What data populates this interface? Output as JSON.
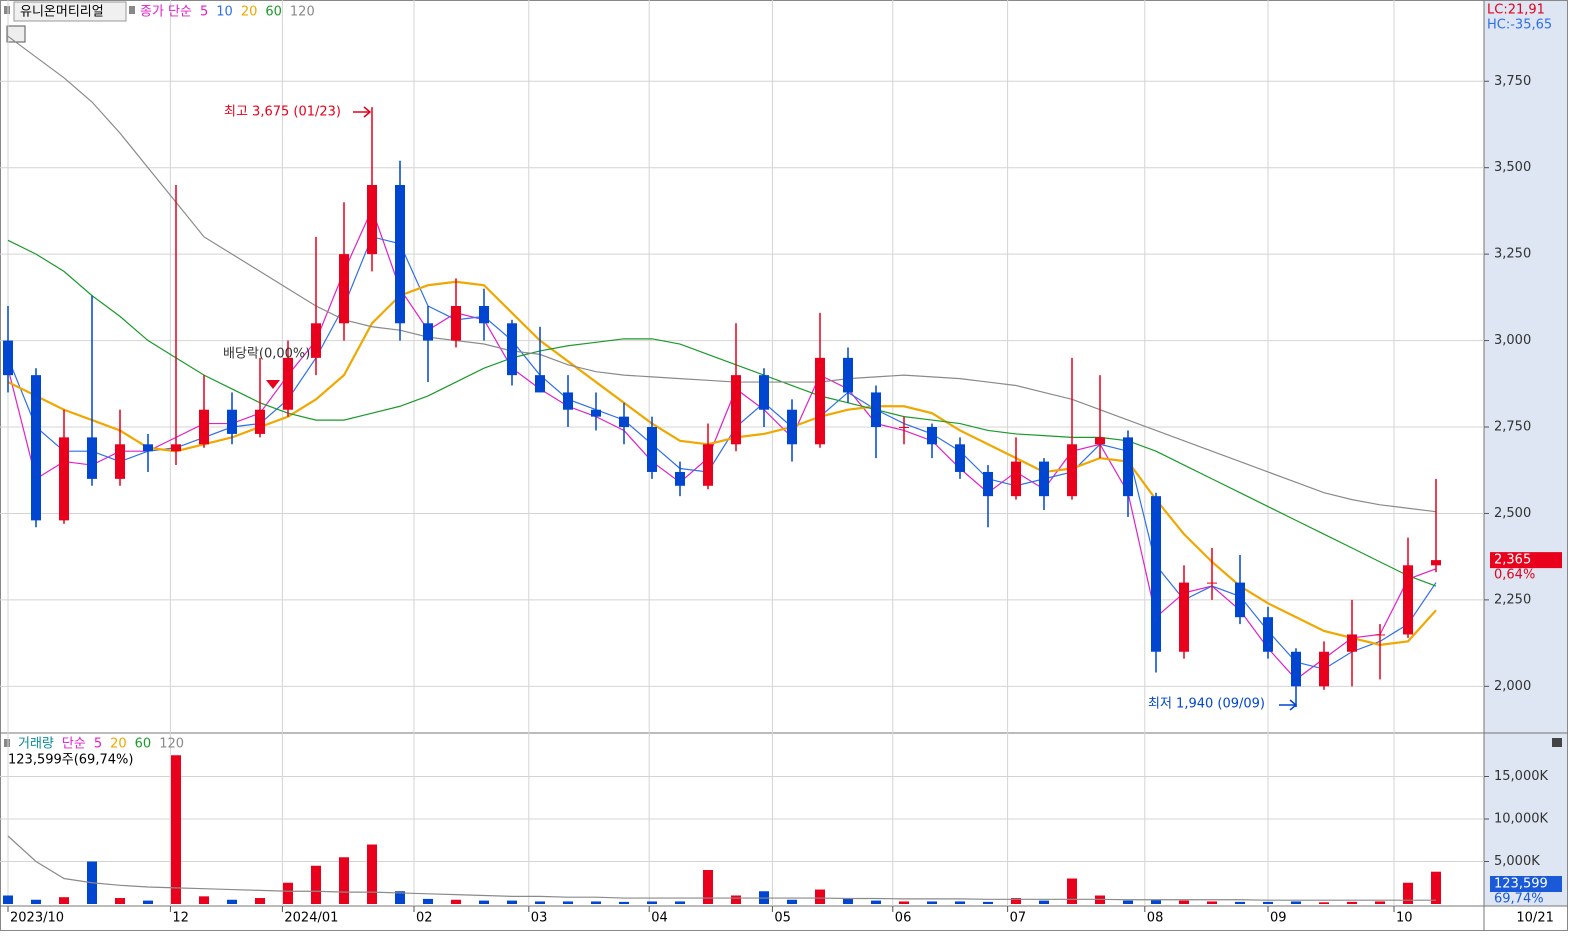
{
  "header": {
    "stock_name": "유니온머티리얼",
    "lc": "LC:21,91",
    "hc": "HC:-35,65"
  },
  "chart_data": [
    {
      "type": "candlestick",
      "legend_title": "종가 단순",
      "open": [
        3000,
        2900,
        2480,
        2720,
        2600,
        2700,
        2680,
        2700,
        2800,
        2730,
        2800,
        2950,
        3050,
        3250,
        3450,
        3050,
        3000,
        3100,
        3050,
        2900,
        2850,
        2800,
        2780,
        2750,
        2620,
        2580,
        2700,
        2900,
        2800,
        2700,
        2950,
        2850,
        2750,
        2750,
        2700,
        2620,
        2550,
        2650,
        2550,
        2700,
        2720,
        2550,
        2100,
        2300,
        2300,
        2200,
        2100,
        2000,
        2100,
        2150,
        2150,
        2350
      ],
      "high": [
        3100,
        2920,
        2800,
        3130,
        2800,
        2730,
        3450,
        2900,
        2850,
        2950,
        3000,
        3300,
        3400,
        3675,
        3520,
        3100,
        3180,
        3150,
        3060,
        3040,
        2900,
        2850,
        2820,
        2780,
        2650,
        2760,
        3050,
        2920,
        2830,
        3080,
        2980,
        2870,
        2780,
        2760,
        2720,
        2640,
        2720,
        2660,
        2950,
        2900,
        2740,
        2560,
        2350,
        2400,
        2380,
        2230,
        2110,
        2130,
        2250,
        2180,
        2430,
        2600
      ],
      "low": [
        2850,
        2460,
        2470,
        2580,
        2580,
        2620,
        2640,
        2690,
        2700,
        2720,
        2780,
        2900,
        3000,
        3200,
        3000,
        2880,
        2980,
        3000,
        2870,
        2850,
        2750,
        2740,
        2700,
        2600,
        2550,
        2570,
        2680,
        2750,
        2650,
        2690,
        2820,
        2660,
        2700,
        2660,
        2600,
        2460,
        2540,
        2510,
        2540,
        2660,
        2490,
        2040,
        2080,
        2250,
        2180,
        2080,
        1940,
        1990,
        2000,
        2020,
        2140,
        2330
      ],
      "close": [
        2900,
        2480,
        2720,
        2600,
        2700,
        2680,
        2700,
        2800,
        2730,
        2800,
        2950,
        3050,
        3250,
        3450,
        3050,
        3000,
        3100,
        3050,
        2900,
        2850,
        2800,
        2780,
        2750,
        2620,
        2580,
        2700,
        2900,
        2800,
        2700,
        2950,
        2850,
        2750,
        2750,
        2700,
        2620,
        2550,
        2650,
        2550,
        2700,
        2720,
        2550,
        2100,
        2300,
        2300,
        2200,
        2100,
        2000,
        2100,
        2150,
        2150,
        2350,
        2365
      ],
      "up_color": "#e8001c",
      "down_color": "#0046d0",
      "series": [
        {
          "name": "5",
          "color": "#e020c8",
          "values": [
            2920,
            2600,
            2650,
            2640,
            2680,
            2680,
            2720,
            2760,
            2760,
            2790,
            2900,
            3000,
            3200,
            3380,
            3150,
            3030,
            3080,
            3060,
            2920,
            2860,
            2810,
            2780,
            2740,
            2650,
            2590,
            2660,
            2860,
            2800,
            2720,
            2900,
            2860,
            2760,
            2740,
            2710,
            2630,
            2560,
            2620,
            2570,
            2680,
            2700,
            2560,
            2200,
            2270,
            2290,
            2220,
            2110,
            2020,
            2080,
            2140,
            2150,
            2310,
            2340
          ]
        },
        {
          "name": "10",
          "color": "#2f6fe8",
          "values": [
            2950,
            2750,
            2680,
            2680,
            2650,
            2680,
            2690,
            2720,
            2750,
            2760,
            2830,
            2950,
            3100,
            3300,
            3280,
            3100,
            3060,
            3070,
            3000,
            2900,
            2830,
            2800,
            2770,
            2700,
            2630,
            2620,
            2750,
            2820,
            2750,
            2780,
            2850,
            2800,
            2760,
            2730,
            2680,
            2600,
            2580,
            2600,
            2620,
            2700,
            2680,
            2350,
            2250,
            2290,
            2260,
            2160,
            2070,
            2050,
            2100,
            2130,
            2180,
            2300
          ]
        },
        {
          "name": "20",
          "color": "#f0a800",
          "values": [
            2880,
            2840,
            2800,
            2770,
            2740,
            2690,
            2680,
            2700,
            2720,
            2750,
            2780,
            2830,
            2900,
            3050,
            3130,
            3160,
            3170,
            3160,
            3080,
            3000,
            2940,
            2880,
            2820,
            2760,
            2710,
            2700,
            2720,
            2730,
            2750,
            2780,
            2800,
            2810,
            2810,
            2790,
            2740,
            2700,
            2660,
            2620,
            2630,
            2660,
            2650,
            2540,
            2440,
            2360,
            2290,
            2240,
            2200,
            2160,
            2140,
            2120,
            2130,
            2220
          ]
        },
        {
          "name": "60",
          "color": "#1a9a2a",
          "values": [
            3290,
            3250,
            3200,
            3130,
            3070,
            3000,
            2950,
            2900,
            2860,
            2820,
            2790,
            2770,
            2770,
            2790,
            2810,
            2840,
            2880,
            2920,
            2950,
            2970,
            2985,
            2995,
            3005,
            3005,
            2990,
            2960,
            2930,
            2900,
            2870,
            2840,
            2820,
            2800,
            2780,
            2770,
            2760,
            2740,
            2730,
            2725,
            2720,
            2720,
            2710,
            2680,
            2640,
            2600,
            2560,
            2520,
            2480,
            2440,
            2400,
            2360,
            2320,
            2290
          ]
        },
        {
          "name": "120",
          "color": "#8a8a8a",
          "values": [
            3880,
            3820,
            3760,
            3690,
            3600,
            3500,
            3400,
            3300,
            3250,
            3200,
            3150,
            3100,
            3060,
            3040,
            3030,
            3010,
            3000,
            2990,
            2970,
            2960,
            2930,
            2910,
            2900,
            2895,
            2890,
            2885,
            2880,
            2880,
            2880,
            2880,
            2890,
            2895,
            2900,
            2895,
            2890,
            2880,
            2870,
            2850,
            2830,
            2800,
            2770,
            2740,
            2710,
            2680,
            2650,
            2620,
            2590,
            2560,
            2540,
            2525,
            2515,
            2505
          ]
        }
      ],
      "ylim": [
        1865,
        3985
      ],
      "yticks": [
        {
          "value": 2000,
          "label": "2,000"
        },
        {
          "value": 2250,
          "label": "2,250"
        },
        {
          "value": 2500,
          "label": "2,500"
        },
        {
          "value": 2750,
          "label": "2,750"
        },
        {
          "value": 3000,
          "label": "3,000"
        },
        {
          "value": 3250,
          "label": "3,250"
        },
        {
          "value": 3500,
          "label": "3,500"
        },
        {
          "value": 3750,
          "label": "3,750"
        }
      ],
      "grid": true,
      "annotations": {
        "high": "최고 3,675 (01/23)",
        "low": "최저 1,940 (09/09)",
        "dividend": "배당락(0,00%)"
      },
      "last_label": "2,365",
      "last_change": "0,64%"
    },
    {
      "type": "volume",
      "legend_title": "거래량",
      "legend_sub": "단순",
      "values": [
        1000,
        500,
        800,
        5000,
        700,
        400,
        17500,
        900,
        500,
        700,
        2500,
        4500,
        5500,
        7000,
        1500,
        600,
        500,
        400,
        400,
        300,
        300,
        300,
        250,
        300,
        300,
        4000,
        1000,
        1500,
        500,
        1700,
        600,
        400,
        300,
        300,
        300,
        250,
        700,
        400,
        3000,
        1000,
        400,
        500,
        400,
        300,
        250,
        250,
        300,
        200,
        250,
        300,
        2500,
        3800
      ],
      "series": [
        {
          "name": "5",
          "color": "#e020c8"
        },
        {
          "name": "20",
          "color": "#f0a800"
        },
        {
          "name": "60",
          "color": "#1a9a2a"
        },
        {
          "name": "120",
          "color": "#8a8a8a",
          "values": [
            8000,
            5000,
            3000,
            2500,
            2200,
            2000,
            1900,
            1800,
            1700,
            1600,
            1500,
            1500,
            1400,
            1400,
            1300,
            1200,
            1100,
            1000,
            900,
            900,
            800,
            800,
            700,
            700,
            700,
            700,
            700,
            700,
            700,
            700,
            650,
            650,
            600,
            600,
            600,
            550,
            550,
            550,
            550,
            550,
            500,
            500,
            500,
            500,
            500,
            450,
            450,
            450,
            450,
            450,
            450,
            450
          ]
        }
      ],
      "ylim": [
        0,
        20000
      ],
      "yticks": [
        {
          "value": 5000,
          "label": "5,000K"
        },
        {
          "value": 10000,
          "label": "10,000K"
        },
        {
          "value": 15000,
          "label": "15,000K"
        }
      ],
      "grid": true,
      "current_text": "123,599주(69,74%)",
      "last_label": "123,599",
      "last_change": "69,74%",
      "xticks": [
        {
          "value": 0,
          "label": "2023/10"
        },
        {
          "value": 5.8,
          "label": "12"
        },
        {
          "value": 9.8,
          "label": "2024/01"
        },
        {
          "value": 14.5,
          "label": "02"
        },
        {
          "value": 18.6,
          "label": "03"
        },
        {
          "value": 22.9,
          "label": "04"
        },
        {
          "value": 27.3,
          "label": "05"
        },
        {
          "value": 31.6,
          "label": "06"
        },
        {
          "value": 35.7,
          "label": "07"
        },
        {
          "value": 40.6,
          "label": "08"
        },
        {
          "value": 45,
          "label": "09"
        },
        {
          "value": 49.5,
          "label": "10"
        },
        {
          "value": 53.8,
          "label": "10/21"
        }
      ]
    }
  ]
}
